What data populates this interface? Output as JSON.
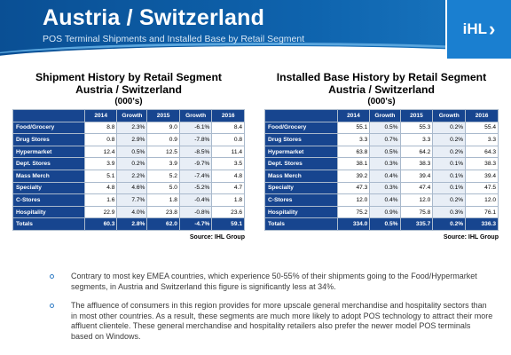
{
  "header": {
    "title": "Austria / Switzerland",
    "subtitle": "POS Terminal Shipments and Installed Base by Retail Segment",
    "logo": "iHL",
    "logo_icon": "chevron-right-icon"
  },
  "shipments": {
    "title_line1": "Shipment History by Retail Segment",
    "title_line2": "Austria / Switzerland",
    "units": "(000's)",
    "columns": [
      "",
      "2014",
      "Growth",
      "2015",
      "Growth",
      "2016"
    ],
    "rows": [
      [
        "Food/Grocery",
        "8.8",
        "2.3%",
        "9.0",
        "-6.1%",
        "8.4"
      ],
      [
        "Drug Stores",
        "0.8",
        "2.9%",
        "0.9",
        "-7.8%",
        "0.8"
      ],
      [
        "Hypermarket",
        "12.4",
        "0.5%",
        "12.5",
        "-8.5%",
        "11.4"
      ],
      [
        "Dept. Stores",
        "3.9",
        "0.2%",
        "3.9",
        "-9.7%",
        "3.5"
      ],
      [
        "Mass Merch",
        "5.1",
        "2.2%",
        "5.2",
        "-7.4%",
        "4.8"
      ],
      [
        "Specialty",
        "4.8",
        "4.6%",
        "5.0",
        "-5.2%",
        "4.7"
      ],
      [
        "C-Stores",
        "1.6",
        "7.7%",
        "1.8",
        "-0.4%",
        "1.8"
      ],
      [
        "Hospitality",
        "22.9",
        "4.0%",
        "23.8",
        "-0.8%",
        "23.6"
      ]
    ],
    "totals": [
      "Totals",
      "60.3",
      "2.8%",
      "62.0",
      "-4.7%",
      "59.1"
    ],
    "source": "Source: IHL Group"
  },
  "installed": {
    "title_line1": "Installed Base History by Retail Segment",
    "title_line2": "Austria / Switzerland",
    "units": "(000's)",
    "columns": [
      "",
      "2014",
      "Growth",
      "2015",
      "Growth",
      "2016"
    ],
    "rows": [
      [
        "Food/Grocery",
        "55.1",
        "0.5%",
        "55.3",
        "0.2%",
        "55.4"
      ],
      [
        "Drug Stores",
        "3.3",
        "0.7%",
        "3.3",
        "0.2%",
        "3.3"
      ],
      [
        "Hypermarket",
        "63.8",
        "0.5%",
        "64.2",
        "0.2%",
        "64.3"
      ],
      [
        "Dept. Stores",
        "38.1",
        "0.3%",
        "38.3",
        "0.1%",
        "38.3"
      ],
      [
        "Mass Merch",
        "39.2",
        "0.4%",
        "39.4",
        "0.1%",
        "39.4"
      ],
      [
        "Specialty",
        "47.3",
        "0.3%",
        "47.4",
        "0.1%",
        "47.5"
      ],
      [
        "C-Stores",
        "12.0",
        "0.4%",
        "12.0",
        "0.2%",
        "12.0"
      ],
      [
        "Hospitality",
        "75.2",
        "0.9%",
        "75.8",
        "0.3%",
        "76.1"
      ]
    ],
    "totals": [
      "Totals",
      "334.0",
      "0.5%",
      "335.7",
      "0.2%",
      "336.3"
    ],
    "source": "Source: IHL Group"
  },
  "bullets": [
    "Contrary to most key EMEA countries, which experience 50-55% of their shipments going to the Food/Hypermarket segments, in Austria and Switzerland this figure is significantly less at 34%.",
    "The affluence of consumers in this region provides for more upscale general merchandise and hospitality sectors than in most other countries. As a result, these segments are much more likely to adopt POS technology to attract their more affluent clientele. These general merchandise and hospitality retailers also prefer the newer model POS terminals based on Windows."
  ],
  "colors": {
    "header_blue": "#0e63ad",
    "table_header": "#17458f",
    "logo_blue": "#1a7fd0",
    "bullet_color": "#2f7bc4"
  }
}
